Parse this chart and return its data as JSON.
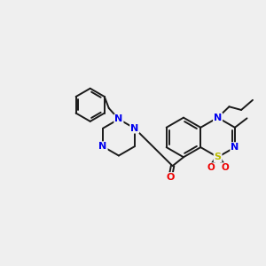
{
  "bg_color": "#efefef",
  "bond_color": "#1a1a1a",
  "N_color": "#0000ee",
  "S_color": "#bbbb00",
  "O_color": "#ee0000",
  "font_size": 8.0,
  "bond_width": 1.4,
  "figsize": [
    3.0,
    3.0
  ],
  "dpi": 100,
  "xlim": [
    0,
    12
  ],
  "ylim": [
    1,
    9
  ]
}
